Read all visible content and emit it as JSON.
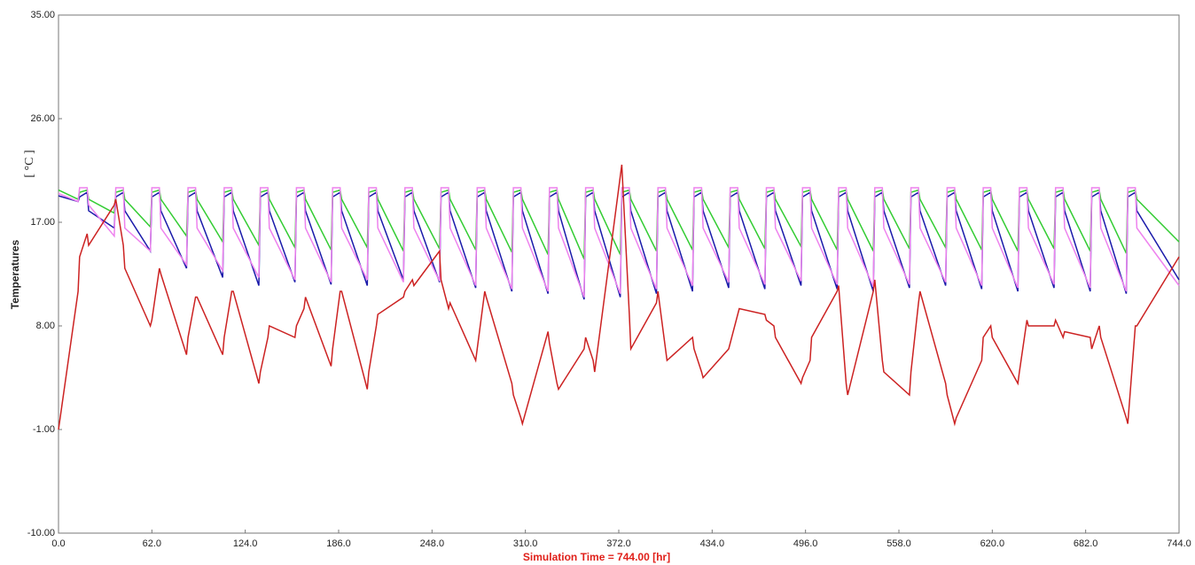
{
  "chart_data": {
    "type": "line",
    "y_label": "Temperatures",
    "y_unit": "[ °C ]",
    "x_label": "Simulation Time = 744.00 [hr]",
    "xlim": [
      0,
      744
    ],
    "ylim": [
      -10,
      35
    ],
    "xticks": [
      {
        "value": 0,
        "label": "0.0"
      },
      {
        "value": 62,
        "label": "62.0"
      },
      {
        "value": 124,
        "label": "124.0"
      },
      {
        "value": 186,
        "label": "186.0"
      },
      {
        "value": 248,
        "label": "248.0"
      },
      {
        "value": 310,
        "label": "310.0"
      },
      {
        "value": 372,
        "label": "372.0"
      },
      {
        "value": 434,
        "label": "434.0"
      },
      {
        "value": 496,
        "label": "496.0"
      },
      {
        "value": 558,
        "label": "558.0"
      },
      {
        "value": 620,
        "label": "620.0"
      },
      {
        "value": 682,
        "label": "682.0"
      },
      {
        "value": 744,
        "label": "744.0"
      }
    ],
    "yticks": [
      {
        "value": -10,
        "label": "-10.00"
      },
      {
        "value": -1,
        "label": "-1.00"
      },
      {
        "value": 8,
        "label": "8.00"
      },
      {
        "value": 17,
        "label": "17.00"
      },
      {
        "value": 26,
        "label": "26.00"
      },
      {
        "value": 35,
        "label": "35.00"
      }
    ],
    "grid": false,
    "x": [
      0,
      13,
      14,
      19,
      20,
      37,
      38,
      43,
      44,
      61,
      62,
      67,
      68,
      85,
      86,
      91,
      92,
      109,
      110,
      115,
      116,
      133,
      134,
      139,
      140,
      157,
      158,
      163,
      164,
      181,
      182,
      187,
      188,
      205,
      206,
      211,
      212,
      229,
      230,
      235,
      236,
      253,
      254,
      259,
      260,
      277,
      278,
      283,
      284,
      301,
      302,
      307,
      308,
      325,
      326,
      331,
      332,
      349,
      350,
      355,
      356,
      373,
      374,
      379,
      380,
      397,
      398,
      403,
      404,
      421,
      422,
      427,
      428,
      445,
      446,
      451,
      452,
      469,
      470,
      475,
      476,
      493,
      494,
      499,
      500,
      517,
      518,
      523,
      524,
      541,
      542,
      547,
      548,
      565,
      566,
      571,
      572,
      589,
      590,
      595,
      596,
      613,
      614,
      619,
      620,
      637,
      638,
      643,
      644,
      661,
      662,
      667,
      668,
      685,
      686,
      691,
      692,
      709,
      710,
      715,
      716,
      744
    ],
    "series": [
      {
        "color": "#1a1aaa",
        "values": [
          19.3,
          18.8,
          19.2,
          19.6,
          18,
          16.5,
          19.2,
          19.6,
          18,
          14.5,
          19.2,
          19.6,
          18,
          13,
          19.2,
          19.6,
          18,
          12.2,
          19.2,
          19.6,
          18,
          11.5,
          19.2,
          19.6,
          18,
          11.8,
          19.2,
          19.6,
          18,
          11.6,
          19.2,
          19.6,
          18,
          11.5,
          19.2,
          19.6,
          18,
          12,
          19.2,
          19.6,
          18,
          11.8,
          19.2,
          19.6,
          18,
          11.3,
          19.2,
          19.6,
          18,
          11,
          19.2,
          19.6,
          18,
          10.8,
          19.2,
          19.6,
          18,
          10.3,
          19.2,
          19.6,
          18,
          10.5,
          19.2,
          19.6,
          18,
          10.8,
          19.2,
          19.6,
          18,
          11,
          19.2,
          19.6,
          18,
          11.3,
          19.2,
          19.6,
          18,
          11.2,
          19.2,
          19.6,
          18,
          11.5,
          19.2,
          19.6,
          18,
          11.2,
          19.2,
          19.6,
          18,
          11,
          19.2,
          19.6,
          18,
          11.3,
          19.2,
          19.6,
          18,
          11.5,
          19.2,
          19.6,
          18,
          11.2,
          19.2,
          19.6,
          18,
          11,
          19.2,
          19.6,
          18,
          11.3,
          19.2,
          19.6,
          18,
          11,
          19.2,
          19.6,
          18,
          10.8,
          19.2,
          19.6,
          18,
          12
        ]
      },
      {
        "color": "#33cc33",
        "values": [
          19.8,
          19,
          19.6,
          19.8,
          19,
          17.8,
          19.6,
          19.8,
          19,
          16.6,
          19.6,
          19.8,
          19,
          15.8,
          19.6,
          19.8,
          19,
          15.3,
          19.6,
          19.8,
          19,
          15,
          19.6,
          19.8,
          19,
          14.8,
          19.6,
          19.8,
          19,
          14.6,
          19.6,
          19.8,
          19,
          14.8,
          19.6,
          19.8,
          19,
          14.5,
          19.6,
          19.8,
          19,
          14.7,
          19.6,
          19.8,
          19,
          14.6,
          19.6,
          19.8,
          19,
          14.4,
          19.6,
          19.8,
          19,
          14.2,
          19.6,
          19.8,
          19,
          13.8,
          19.6,
          19.8,
          19,
          14.2,
          19.6,
          19.8,
          19,
          14.5,
          19.6,
          19.8,
          19,
          14.6,
          19.6,
          19.8,
          19,
          14.8,
          19.6,
          19.8,
          19,
          14.7,
          19.6,
          19.8,
          19,
          14.9,
          19.6,
          19.8,
          19,
          14.6,
          19.6,
          19.8,
          19,
          14.5,
          19.6,
          19.8,
          19,
          14.7,
          19.6,
          19.8,
          19,
          14.8,
          19.6,
          19.8,
          19,
          14.6,
          19.6,
          19.8,
          19,
          14.5,
          19.6,
          19.8,
          19,
          14.7,
          19.6,
          19.8,
          19,
          14.5,
          19.6,
          19.8,
          19,
          14.3,
          19.6,
          19.8,
          19,
          15.3
        ]
      },
      {
        "color": "#ee82ee",
        "values": [
          19.5,
          18.8,
          20,
          20,
          18.5,
          15.8,
          20,
          20,
          16.5,
          14.5,
          20,
          20,
          16.5,
          13.3,
          20,
          20,
          16.5,
          12.8,
          20,
          20,
          16.5,
          12.2,
          20,
          20,
          16.5,
          12,
          20,
          20,
          16.5,
          11.8,
          20,
          20,
          16.5,
          12,
          20,
          20,
          16.5,
          11.8,
          20,
          20,
          16.5,
          11.9,
          20,
          20,
          16.5,
          11.5,
          20,
          20,
          16.5,
          11.2,
          20,
          20,
          16.5,
          11,
          20,
          20,
          16.5,
          10.5,
          20,
          20,
          16.5,
          10.8,
          20,
          20,
          16.5,
          11.2,
          20,
          20,
          16.5,
          11.5,
          20,
          20,
          16.5,
          11.8,
          20,
          20,
          16.5,
          11.6,
          20,
          20,
          16.5,
          11.9,
          20,
          20,
          16.5,
          11.6,
          20,
          20,
          16.5,
          11.4,
          20,
          20,
          16.5,
          11.6,
          20,
          20,
          16.5,
          11.8,
          20,
          20,
          16.5,
          11.5,
          20,
          20,
          16.5,
          11.3,
          20,
          20,
          16.5,
          11.6,
          20,
          20,
          16.5,
          11.3,
          20,
          20,
          16.5,
          11,
          20,
          20,
          16.5,
          11.5
        ]
      },
      {
        "color": "#cc2222",
        "values": [
          -1,
          11,
          14,
          16,
          15,
          18.5,
          19,
          15,
          13,
          8,
          8.5,
          13,
          12.5,
          5.5,
          7,
          10.5,
          10.5,
          5.5,
          7,
          11,
          11,
          3,
          4,
          7,
          8,
          7,
          8,
          9.5,
          10.5,
          4.5,
          6,
          11,
          11,
          2.5,
          4,
          8,
          9,
          10.5,
          11,
          12,
          11.5,
          14.5,
          12,
          9.5,
          10,
          5,
          6,
          11,
          10.5,
          3,
          2,
          0,
          -0.5,
          7.5,
          6.5,
          3,
          2.5,
          6,
          7,
          5,
          4,
          21,
          22,
          9,
          6,
          10,
          11,
          6,
          5,
          7,
          6,
          4,
          3.5,
          6,
          6.5,
          9,
          9.5,
          9,
          8.5,
          8,
          7,
          3,
          3.5,
          5,
          7,
          11,
          11.5,
          3,
          2,
          11,
          12,
          5,
          4,
          2,
          4,
          10,
          11,
          3,
          2,
          -0.5,
          0,
          5,
          7,
          8,
          7,
          3,
          4,
          8.5,
          8,
          8,
          8.5,
          7,
          7.5,
          7,
          6,
          8,
          7,
          0,
          -0.5,
          8,
          8,
          14
        ]
      }
    ]
  }
}
